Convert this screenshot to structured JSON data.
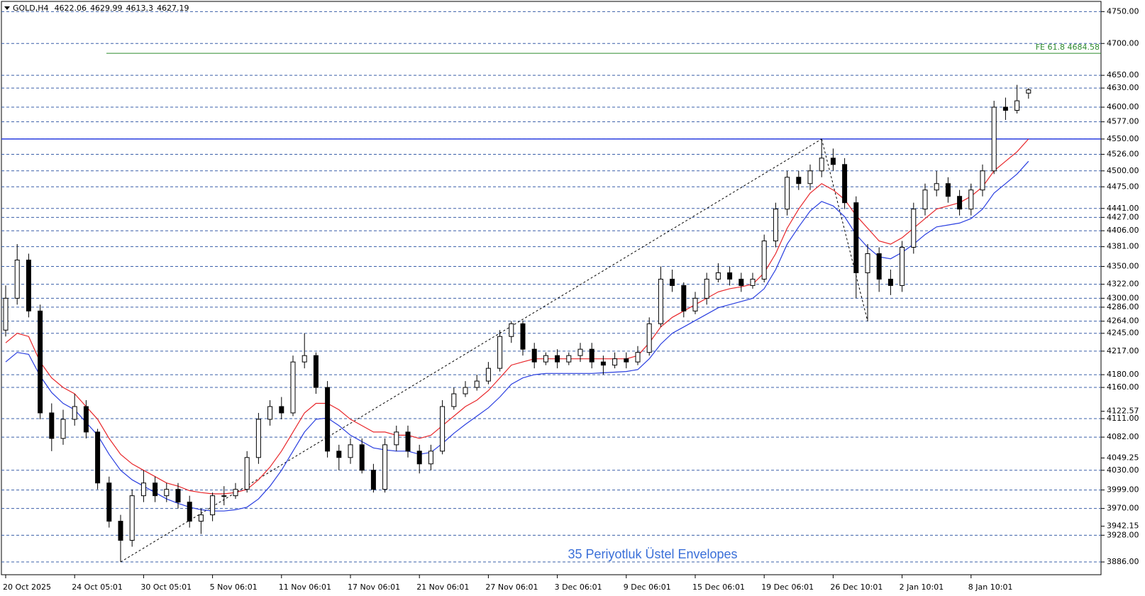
{
  "chart_data": {
    "type": "candlestick",
    "symbol": "GOLD,H4",
    "indicator_label": "35 Periyotluk Üstel Envelopes",
    "categories": [
      "20 Oct 2025",
      null,
      null,
      null,
      null,
      null,
      "24 Oct 05:01",
      null,
      null,
      null,
      null,
      null,
      "30 Oct 05:01",
      null,
      null,
      null,
      null,
      null,
      "5 Nov 06:01",
      null,
      null,
      null,
      null,
      null,
      "11 Nov 06:01",
      null,
      null,
      null,
      null,
      null,
      "17 Nov 06:01",
      null,
      null,
      null,
      null,
      null,
      "21 Nov 06:01",
      null,
      null,
      null,
      null,
      null,
      "27 Nov 06:01",
      null,
      null,
      null,
      null,
      null,
      "3 Dec 06:01",
      null,
      null,
      null,
      null,
      null,
      "9 Dec 06:01",
      null,
      null,
      null,
      null,
      null,
      "15 Dec 06:01",
      null,
      null,
      null,
      null,
      null,
      "19 Dec 06:01",
      null,
      null,
      null,
      null,
      null,
      "26 Dec 10:01",
      null,
      null,
      null,
      null,
      null,
      "2 Jan 10:01",
      null,
      null,
      null,
      null,
      null,
      "8 Jan 10:01",
      null,
      null,
      null,
      null,
      null
    ],
    "open": [
      4250,
      4300,
      4360,
      4280,
      4120,
      4080,
      4110,
      4130,
      4090,
      4010,
      3950,
      3920,
      3990,
      4010,
      3990,
      4000,
      3980,
      3950,
      3960,
      3990,
      3990,
      4000,
      4050,
      4110,
      4130,
      4120,
      4200,
      4210,
      4160,
      4060,
      4050,
      4070,
      4030,
      4000,
      4070,
      4090,
      4060,
      4040,
      4060,
      4130,
      4150,
      4160,
      4170,
      4190,
      4240,
      4260,
      4220,
      4200,
      4210,
      4200,
      4210,
      4220,
      4200,
      4195,
      4205,
      4200,
      4215,
      4260,
      4330,
      4320,
      4280,
      4300,
      4330,
      4340,
      4330,
      4320,
      4330,
      4390,
      4440,
      4490,
      4480,
      4500,
      4520,
      4510,
      4450,
      4340,
      4370,
      4330,
      4320,
      4380,
      4440,
      4470,
      4480,
      4460,
      4440,
      4470,
      4500,
      4600,
      4595,
      4622.06
    ],
    "high": [
      4320,
      4385,
      4370,
      4290,
      4135,
      4125,
      4150,
      4140,
      4095,
      4020,
      3960,
      4000,
      4030,
      4020,
      4010,
      4010,
      3990,
      3970,
      3995,
      4005,
      4010,
      4060,
      4120,
      4140,
      4145,
      4210,
      4245,
      4215,
      4170,
      4070,
      4080,
      4080,
      4040,
      4080,
      4100,
      4100,
      4070,
      4070,
      4140,
      4160,
      4170,
      4180,
      4200,
      4250,
      4264,
      4265,
      4230,
      4215,
      4220,
      4215,
      4230,
      4230,
      4210,
      4215,
      4215,
      4225,
      4270,
      4350,
      4345,
      4325,
      4310,
      4340,
      4355,
      4350,
      4340,
      4340,
      4400,
      4450,
      4500,
      4500,
      4510,
      4550,
      4535,
      4520,
      4460,
      4385,
      4380,
      4345,
      4390,
      4450,
      4480,
      4500,
      4490,
      4470,
      4480,
      4510,
      4610,
      4615,
      4635,
      4629.99
    ],
    "low": [
      4240,
      4290,
      4270,
      4110,
      4060,
      4070,
      4100,
      4080,
      4000,
      3940,
      3886,
      3910,
      3980,
      3980,
      3980,
      3970,
      3940,
      3930,
      3950,
      3975,
      3985,
      3995,
      4040,
      4100,
      4110,
      4115,
      4190,
      4150,
      4050,
      4030,
      4040,
      4025,
      3995,
      3995,
      4060,
      4050,
      4025,
      4030,
      4055,
      4125,
      4145,
      4155,
      4165,
      4185,
      4230,
      4210,
      4190,
      4195,
      4190,
      4195,
      4200,
      4190,
      4180,
      4190,
      4190,
      4195,
      4210,
      4255,
      4310,
      4270,
      4275,
      4290,
      4325,
      4320,
      4310,
      4315,
      4325,
      4380,
      4430,
      4470,
      4470,
      4490,
      4500,
      4440,
      4300,
      4264,
      4310,
      4305,
      4310,
      4370,
      4430,
      4460,
      4450,
      4430,
      4430,
      4460,
      4495,
      4580,
      4590,
      4613.3
    ],
    "close": [
      4300,
      4360,
      4280,
      4120,
      4080,
      4110,
      4130,
      4090,
      4010,
      3950,
      3920,
      3990,
      4010,
      3990,
      4000,
      3980,
      3950,
      3960,
      3990,
      3990,
      4000,
      4050,
      4110,
      4130,
      4120,
      4200,
      4210,
      4160,
      4060,
      4050,
      4070,
      4030,
      4000,
      4070,
      4090,
      4060,
      4040,
      4060,
      4130,
      4150,
      4160,
      4170,
      4190,
      4240,
      4260,
      4220,
      4200,
      4210,
      4200,
      4210,
      4220,
      4200,
      4195,
      4205,
      4200,
      4215,
      4260,
      4330,
      4320,
      4280,
      4300,
      4330,
      4340,
      4330,
      4320,
      4330,
      4390,
      4440,
      4490,
      4480,
      4500,
      4520,
      4510,
      4450,
      4340,
      4370,
      4330,
      4320,
      4380,
      4440,
      4470,
      4480,
      4460,
      4440,
      4470,
      4500,
      4600,
      4595,
      4610,
      4627.19
    ],
    "series": [
      {
        "color": "#e8262a",
        "values": [
          4230,
          4245,
          4240,
          4200,
          4175,
          4160,
          4150,
          4130,
          4110,
          4080,
          4055,
          4040,
          4030,
          4020,
          4010,
          4005,
          3998,
          3995,
          3993,
          3993,
          3995,
          4000,
          4015,
          4035,
          4060,
          4090,
          4120,
          4135,
          4135,
          4125,
          4110,
          4100,
          4090,
          4090,
          4085,
          4085,
          4080,
          4085,
          4100,
          4115,
          4130,
          4140,
          4155,
          4175,
          4195,
          4200,
          4205,
          4205,
          4205,
          4205,
          4205,
          4205,
          4205,
          4205,
          4205,
          4210,
          4230,
          4255,
          4270,
          4280,
          4290,
          4300,
          4310,
          4315,
          4318,
          4322,
          4340,
          4370,
          4410,
          4440,
          4465,
          4480,
          4470,
          4455,
          4430,
          4410,
          4390,
          4385,
          4395,
          4410,
          4425,
          4440,
          4445,
          4450,
          4460,
          4475,
          4500,
          4515,
          4530,
          4550
        ]
      },
      {
        "color": "#2a3fe0",
        "values": [
          4200,
          4215,
          4212,
          4178,
          4152,
          4135,
          4125,
          4105,
          4085,
          4055,
          4030,
          4015,
          4005,
          3995,
          3985,
          3978,
          3972,
          3968,
          3966,
          3966,
          3968,
          3972,
          3985,
          4005,
          4030,
          4060,
          4090,
          4110,
          4112,
          4100,
          4085,
          4075,
          4065,
          4062,
          4060,
          4060,
          4055,
          4058,
          4072,
          4088,
          4102,
          4115,
          4128,
          4145,
          4165,
          4175,
          4180,
          4182,
          4182,
          4182,
          4182,
          4182,
          4183,
          4184,
          4185,
          4188,
          4205,
          4228,
          4245,
          4255,
          4265,
          4275,
          4285,
          4290,
          4295,
          4300,
          4315,
          4345,
          4385,
          4412,
          4437,
          4452,
          4445,
          4428,
          4400,
          4380,
          4365,
          4362,
          4372,
          4385,
          4400,
          4412,
          4415,
          4418,
          4425,
          4440,
          4465,
          4480,
          4495,
          4515
        ]
      }
    ],
    "ylim": [
      3866,
      4766
    ],
    "yticks": [
      {
        "value": 4750,
        "label": "4750.00"
      },
      {
        "value": 4700,
        "label": "4700.00"
      },
      {
        "value": 4650,
        "label": "4650.00"
      },
      {
        "value": 4630,
        "label": "4630.00"
      },
      {
        "value": 4600,
        "label": "4600.00"
      },
      {
        "value": 4577,
        "label": "4577.00"
      },
      {
        "value": 4550,
        "label": "4550.00"
      },
      {
        "value": 4526,
        "label": "4526.00"
      },
      {
        "value": 4500,
        "label": "4500.00"
      },
      {
        "value": 4475,
        "label": "4475.00"
      },
      {
        "value": 4441,
        "label": "4441.00"
      },
      {
        "value": 4427,
        "label": "4427.00"
      },
      {
        "value": 4406,
        "label": "4406.00"
      },
      {
        "value": 4381,
        "label": "4381.00"
      },
      {
        "value": 4350,
        "label": "4350.00"
      },
      {
        "value": 4322,
        "label": "4322.00"
      },
      {
        "value": 4300,
        "label": "4300.00"
      },
      {
        "value": 4286,
        "label": "4286.00"
      },
      {
        "value": 4264,
        "label": "4264.00"
      },
      {
        "value": 4245,
        "label": "4245.00"
      },
      {
        "value": 4217,
        "label": "4217.00"
      },
      {
        "value": 4180,
        "label": "4180.00"
      },
      {
        "value": 4160,
        "label": "4160.00"
      },
      4122.57,
      {
        "value": 4111,
        "label": "4111.00"
      },
      {
        "value": 4082,
        "label": "4082.00"
      },
      4049.25,
      {
        "value": 4030,
        "label": "4030.00"
      },
      {
        "value": 3999,
        "label": "3999.00"
      },
      {
        "value": 3970,
        "label": "3970.00"
      },
      3942.15,
      {
        "value": 3928,
        "label": "3928.00"
      },
      {
        "value": 3886,
        "label": "3886.00"
      }
    ],
    "hline": {
      "value": 4550,
      "color": "#2a3fe0"
    },
    "fe_line": {
      "value": 4684.58,
      "label": "FE 61.8 4684.58",
      "color": "#2e8b2e"
    },
    "grid": true
  }
}
